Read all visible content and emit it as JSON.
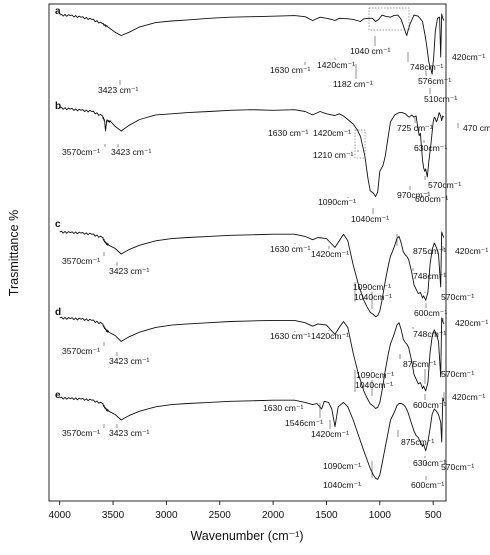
{
  "chart_data": {
    "type": "line",
    "xlabel": "Wavenumber (cm⁻¹)",
    "ylabel": "Trasmittance %",
    "xlim": [
      4100,
      380
    ],
    "x_reversed": true,
    "xticks": [
      4000,
      3500,
      3000,
      2500,
      2000,
      1500,
      1000,
      500
    ],
    "xtick_labels": [
      "4000",
      "3500",
      "3000",
      "2500",
      "2000",
      "1500",
      "1000",
      "500"
    ],
    "grid": false,
    "legend": "none",
    "series": [
      {
        "panel": "a",
        "x": [
          4000,
          3900,
          3800,
          3700,
          3600,
          3550,
          3480,
          3423,
          3350,
          3250,
          3100,
          2950,
          2800,
          2600,
          2400,
          2200,
          2000,
          1800,
          1700,
          1630,
          1560,
          1500,
          1450,
          1420,
          1380,
          1300,
          1250,
          1182,
          1150,
          1100,
          1070,
          1040,
          1010,
          980,
          950,
          900,
          870,
          830,
          800,
          770,
          748,
          720,
          680,
          640,
          600,
          576,
          560,
          540,
          520,
          510,
          495,
          480,
          460,
          440,
          430,
          420,
          410,
          400
        ],
        "y": [
          99,
          98.5,
          97,
          95,
          91,
          88,
          83,
          80,
          83,
          88,
          92,
          93.5,
          94.5,
          96,
          97,
          97.5,
          98,
          98.5,
          97.5,
          94,
          97,
          96,
          95,
          94,
          96,
          95.5,
          95,
          93,
          95.5,
          96,
          96,
          93,
          95,
          99,
          98,
          97,
          98.5,
          99,
          95,
          86,
          80,
          90,
          99,
          98,
          93,
          80,
          70,
          55,
          48,
          44,
          60,
          84,
          96,
          97,
          60,
          100,
          96,
          94
        ]
      },
      {
        "panel": "b",
        "x": [
          4000,
          3900,
          3800,
          3700,
          3600,
          3580,
          3570,
          3560,
          3520,
          3480,
          3423,
          3350,
          3250,
          3100,
          2950,
          2800,
          2600,
          2400,
          2200,
          2000,
          1800,
          1700,
          1630,
          1560,
          1500,
          1450,
          1420,
          1380,
          1340,
          1300,
          1250,
          1210,
          1180,
          1140,
          1110,
          1090,
          1060,
          1040,
          1020,
          1000,
          970,
          950,
          930,
          900,
          860,
          820,
          790,
          760,
          740,
          725,
          700,
          680,
          660,
          640,
          630,
          620,
          610,
          600,
          590,
          580,
          570,
          555,
          540,
          520,
          500,
          490,
          480,
          470,
          460,
          445,
          430,
          420,
          410,
          400
        ],
        "y": [
          100,
          99,
          98,
          97,
          93,
          89,
          80,
          89,
          88,
          84,
          80,
          85,
          90,
          94,
          95,
          96,
          97,
          98,
          98.5,
          98,
          98.5,
          97,
          94,
          97,
          95,
          94,
          93.5,
          95,
          93,
          90,
          86,
          81,
          75,
          58,
          38,
          28,
          26,
          23,
          27,
          45,
          50,
          58,
          70,
          88,
          94,
          96,
          96,
          95,
          93,
          92,
          94,
          92,
          93,
          80,
          76,
          78,
          66,
          55,
          48,
          45,
          47,
          40,
          54,
          70,
          88,
          92,
          91,
          88,
          90,
          96,
          93,
          89,
          93,
          92
        ]
      },
      {
        "panel": "c",
        "x": [
          4000,
          3900,
          3800,
          3700,
          3600,
          3570,
          3540,
          3480,
          3423,
          3350,
          3250,
          3100,
          2950,
          2800,
          2600,
          2400,
          2200,
          2000,
          1800,
          1700,
          1630,
          1580,
          1500,
          1460,
          1420,
          1380,
          1340,
          1300,
          1250,
          1200,
          1150,
          1120,
          1090,
          1060,
          1040,
          1020,
          1000,
          980,
          950,
          920,
          900,
          875,
          860,
          840,
          820,
          800,
          780,
          760,
          748,
          730,
          700,
          680,
          660,
          640,
          620,
          600,
          590,
          570,
          550,
          530,
          510,
          490,
          470,
          450,
          430,
          420,
          410,
          400
        ],
        "y": [
          100,
          99.5,
          99,
          98,
          95,
          90,
          88,
          85,
          80,
          84,
          88,
          92,
          94,
          95,
          96,
          97,
          97.5,
          98,
          98,
          96,
          93,
          95,
          94,
          90,
          86,
          92,
          98,
          92,
          70,
          52,
          38,
          32,
          27,
          25,
          23,
          24,
          28,
          38,
          55,
          70,
          78,
          84,
          88,
          94,
          96,
          90,
          82,
          79,
          78,
          75,
          63,
          52,
          48,
          44,
          45,
          40,
          42,
          38,
          45,
          70,
          84,
          90,
          86,
          80,
          50,
          100,
          97,
          95
        ]
      },
      {
        "panel": "d",
        "x": [
          4000,
          3900,
          3800,
          3700,
          3600,
          3570,
          3540,
          3480,
          3423,
          3350,
          3250,
          3100,
          2950,
          2800,
          2600,
          2400,
          2200,
          2000,
          1800,
          1700,
          1630,
          1580,
          1500,
          1460,
          1420,
          1380,
          1340,
          1300,
          1250,
          1200,
          1150,
          1120,
          1090,
          1060,
          1040,
          1020,
          1000,
          980,
          950,
          920,
          900,
          875,
          860,
          840,
          820,
          800,
          780,
          760,
          748,
          730,
          700,
          680,
          660,
          640,
          620,
          600,
          590,
          570,
          550,
          530,
          510,
          490,
          470,
          450,
          430,
          420,
          410,
          400
        ],
        "y": [
          100,
          99.5,
          99,
          98,
          95,
          90,
          88,
          85,
          80,
          84,
          88,
          92,
          94,
          95,
          96,
          97,
          97.5,
          98,
          98,
          96,
          93,
          95,
          94,
          90,
          86,
          92,
          97,
          92,
          70,
          52,
          38,
          32,
          27,
          25,
          23,
          24,
          28,
          38,
          55,
          70,
          78,
          84,
          88,
          94,
          96,
          90,
          82,
          79,
          78,
          75,
          63,
          52,
          48,
          44,
          45,
          40,
          42,
          38,
          45,
          70,
          84,
          90,
          86,
          80,
          50,
          100,
          97,
          95
        ]
      },
      {
        "panel": "e",
        "x": [
          4000,
          3900,
          3800,
          3700,
          3600,
          3570,
          3540,
          3480,
          3423,
          3350,
          3250,
          3100,
          2950,
          2800,
          2600,
          2400,
          2200,
          2000,
          1800,
          1700,
          1630,
          1590,
          1546,
          1520,
          1480,
          1450,
          1420,
          1390,
          1340,
          1300,
          1250,
          1200,
          1150,
          1120,
          1090,
          1060,
          1040,
          1020,
          1000,
          980,
          950,
          920,
          900,
          875,
          860,
          840,
          820,
          800,
          780,
          760,
          740,
          720,
          700,
          680,
          660,
          640,
          630,
          620,
          600,
          590,
          570,
          550,
          530,
          510,
          490,
          470,
          450,
          430,
          420,
          410,
          400
        ],
        "y": [
          100,
          99.5,
          99,
          98,
          95,
          90,
          88,
          85,
          80,
          84,
          88,
          92,
          94,
          95,
          96,
          97,
          97.5,
          98,
          98,
          96,
          94,
          95,
          90,
          97,
          96,
          90,
          74,
          92,
          96,
          92,
          80,
          66,
          52,
          44,
          36,
          30,
          27,
          26,
          30,
          40,
          55,
          70,
          80,
          85,
          88,
          93,
          95,
          95,
          94,
          92,
          88,
          82,
          76,
          70,
          66,
          64,
          62,
          60,
          56,
          58,
          52,
          60,
          72,
          85,
          90,
          88,
          85,
          78,
          60,
          100,
          97
        ]
      }
    ]
  },
  "panel_labels": [
    "a",
    "b",
    "c",
    "d",
    "e"
  ],
  "annotations": {
    "a": [
      "3423 cm⁻¹",
      "1630 cm⁻¹",
      "1420cm⁻¹",
      "1182 cm⁻¹",
      "1040 cm⁻¹",
      "748cm⁻¹",
      "576cm⁻¹",
      "510cm⁻¹",
      "420cm⁻¹"
    ],
    "b": [
      "3570cm⁻¹",
      "3423 cm⁻¹",
      "1630 cm⁻¹",
      "1420cm⁻¹",
      "1210 cm⁻¹",
      "1090cm⁻¹",
      "1040cm⁻¹",
      "970cm⁻¹",
      "725 cm⁻¹",
      "630cm⁻¹",
      "470 cm⁻¹",
      "570cm⁻¹",
      "600cm⁻¹"
    ],
    "c": [
      "3570cm⁻¹",
      "3423 cm⁻¹",
      "1630 cm⁻¹",
      "1420cm⁻¹",
      "875cm⁻¹",
      "748cm⁻¹",
      "1090cm⁻¹",
      "1040cm⁻¹",
      "600cm⁻¹",
      "570cm⁻¹",
      "420cm⁻¹"
    ],
    "d": [
      "3570cm⁻¹",
      "3423 cm⁻¹",
      "1630 cm⁻¹",
      "1420cm⁻¹",
      "748cm⁻¹",
      "875cm⁻¹",
      "1090cm⁻¹",
      "1040cm⁻¹",
      "600cm⁻¹",
      "570cm⁻¹",
      "420cm⁻¹"
    ],
    "e": [
      "3570cm⁻¹",
      "3423 cm⁻¹",
      "1630 cm⁻¹",
      "1546cm⁻¹",
      "1420cm⁻¹",
      "875cm⁻¹",
      "630cm⁻¹",
      "1090cm⁻¹",
      "1040cm⁻¹",
      "600cm⁻¹",
      "570cm⁻¹",
      "420cm⁻¹"
    ]
  }
}
